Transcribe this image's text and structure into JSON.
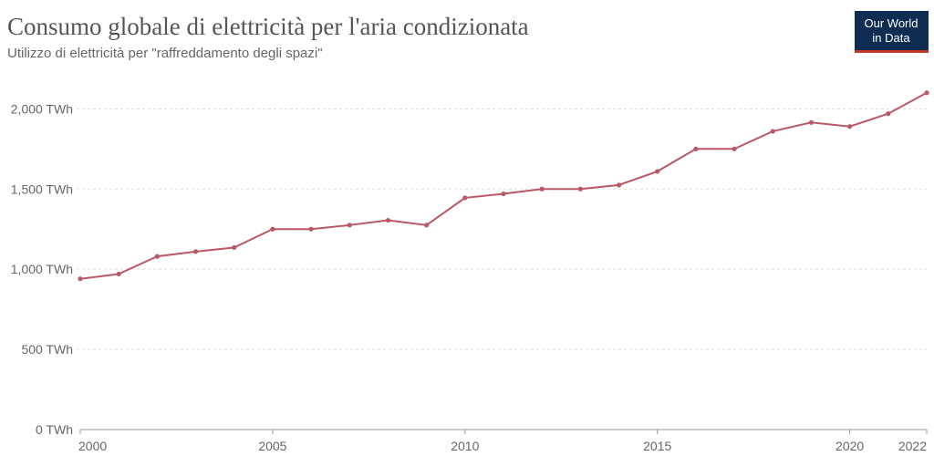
{
  "chart_data": {
    "type": "line",
    "title": "Consumo globale di elettricità per l'aria condizionata",
    "subtitle": "Utilizzo di elettricità per \"raffreddamento degli spazi\"",
    "logo": [
      "Our World",
      "in Data"
    ],
    "x": [
      2000,
      2001,
      2002,
      2003,
      2004,
      2005,
      2006,
      2007,
      2008,
      2009,
      2010,
      2011,
      2012,
      2013,
      2014,
      2015,
      2016,
      2017,
      2018,
      2019,
      2020,
      2021,
      2022
    ],
    "series": [
      {
        "name": "Consumo",
        "color": "#b95965",
        "values": [
          940,
          970,
          1080,
          1110,
          1135,
          1250,
          1250,
          1275,
          1305,
          1275,
          1445,
          1470,
          1500,
          1500,
          1525,
          1610,
          1750,
          1750,
          1860,
          1915,
          1890,
          1970,
          2100
        ]
      }
    ],
    "xlim": [
      2000,
      2022
    ],
    "xticks": [
      2000,
      2005,
      2010,
      2015,
      2020,
      2022
    ],
    "ylim": [
      0,
      2110
    ],
    "yticks": [
      {
        "value": 0,
        "label": "0 TWh"
      },
      {
        "value": 500,
        "label": "500 TWh"
      },
      {
        "value": 1000,
        "label": "1,000 TWh"
      },
      {
        "value": 1500,
        "label": "1,500 TWh"
      },
      {
        "value": 2000,
        "label": "2,000 TWh"
      }
    ],
    "grid": true
  }
}
